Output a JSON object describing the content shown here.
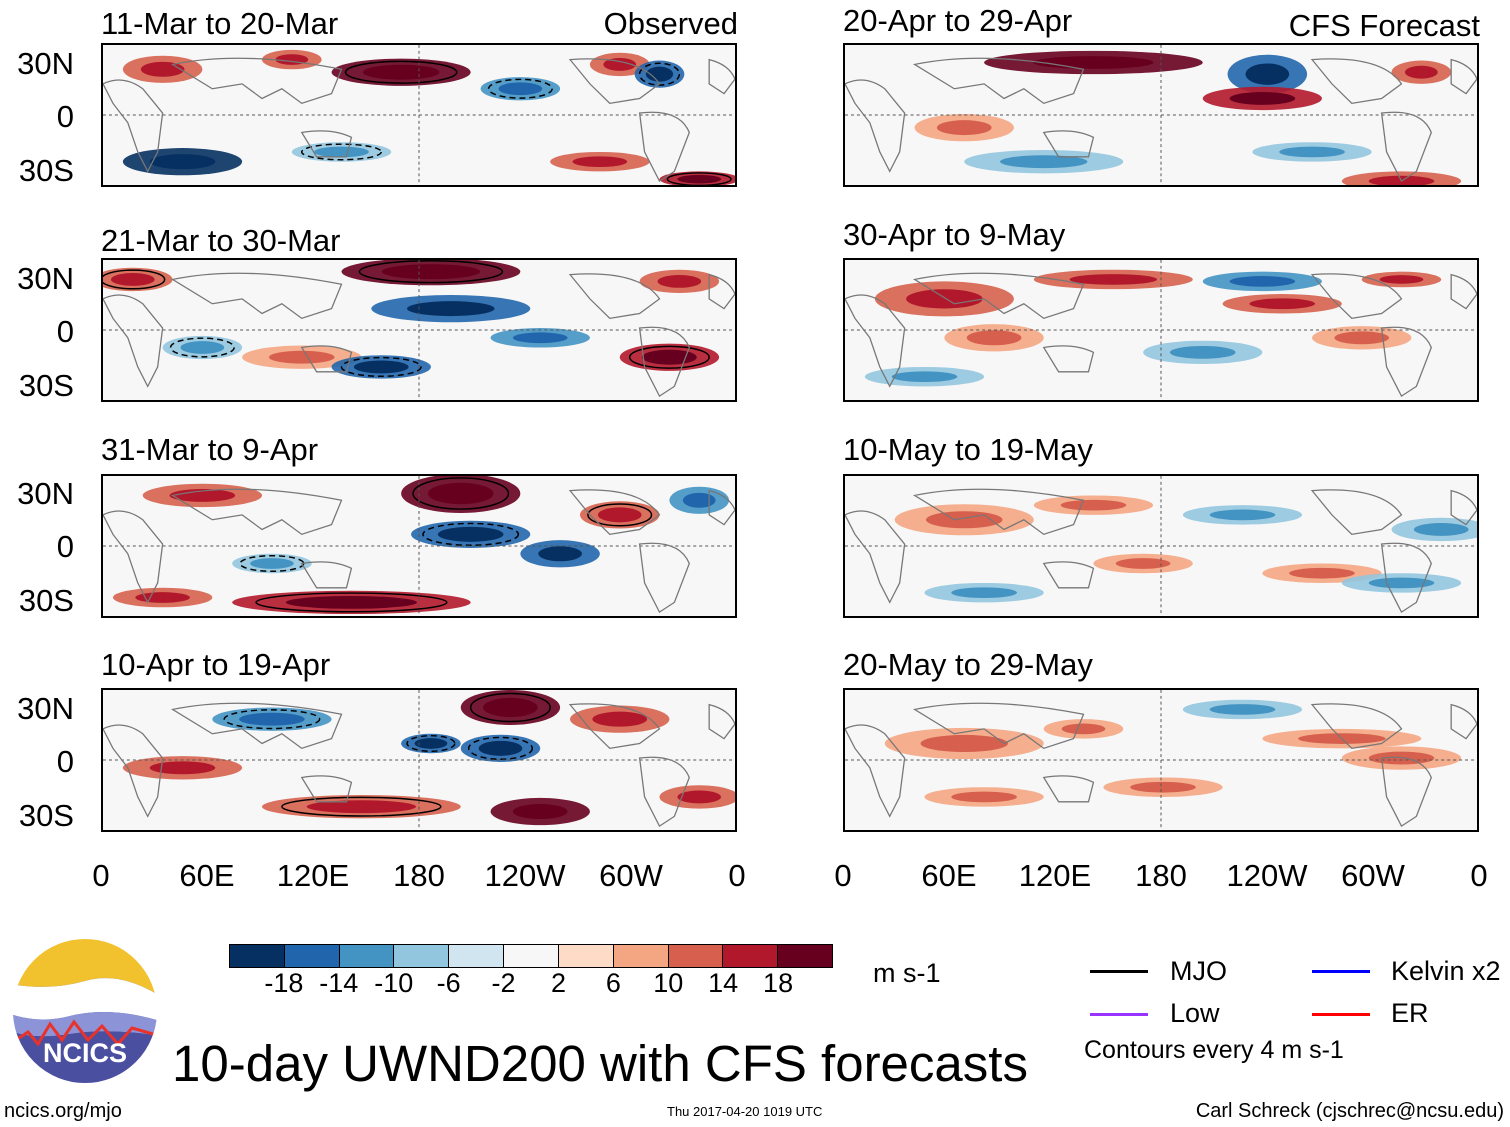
{
  "chart_data": {
    "type": "heatmap",
    "title": "10-day UWND200 with CFS forecasts",
    "variable": "200 hPa zonal wind anomaly",
    "units": "m s-1",
    "panels": [
      {
        "period": "11-Mar to 20-Mar",
        "label": "Observed",
        "column": "left"
      },
      {
        "period": "21-Mar to 30-Mar",
        "label": "",
        "column": "left"
      },
      {
        "period": "31-Mar to 9-Apr",
        "label": "",
        "column": "left"
      },
      {
        "period": "10-Apr to 19-Apr",
        "label": "",
        "column": "left"
      },
      {
        "period": "20-Apr to 29-Apr",
        "label": "CFS Forecast",
        "column": "right"
      },
      {
        "period": "30-Apr to 9-May",
        "label": "",
        "column": "right"
      },
      {
        "period": "10-May to 19-May",
        "label": "",
        "column": "right"
      },
      {
        "period": "20-May to 29-May",
        "label": "",
        "column": "right"
      }
    ],
    "y_ticks": [
      "30N",
      "0",
      "30S"
    ],
    "ylim": [
      -40,
      40
    ],
    "x_ticks": [
      "0",
      "60E",
      "120E",
      "180",
      "120W",
      "60W",
      "0"
    ],
    "xlim": [
      0,
      360
    ],
    "colorbar": {
      "labels": [
        "-18",
        "-14",
        "-10",
        "-6",
        "-2",
        "2",
        "6",
        "10",
        "14",
        "18"
      ],
      "colors": [
        "#053061",
        "#2166ac",
        "#4393c3",
        "#92c5de",
        "#d1e5f0",
        "#f7f7f7",
        "#fddbc7",
        "#f4a582",
        "#d6604d",
        "#b2182b",
        "#67001f"
      ],
      "units": "m s-1"
    },
    "legend": [
      {
        "label": "MJO",
        "color": "#000000"
      },
      {
        "label": "Kelvin x2",
        "color": "#0000ff"
      },
      {
        "label": "Low",
        "color": "#9933ff"
      },
      {
        "label": "ER",
        "color": "#ff0000"
      }
    ],
    "contour_note": "Contours every 4 m s-1"
  },
  "footer": {
    "logo_text": "NCICS",
    "url": "ncics.org/mjo",
    "timestamp": "Thu 2017-04-20 1019 UTC",
    "author": "Carl Schreck (cjschrec@ncsu.edu)"
  }
}
